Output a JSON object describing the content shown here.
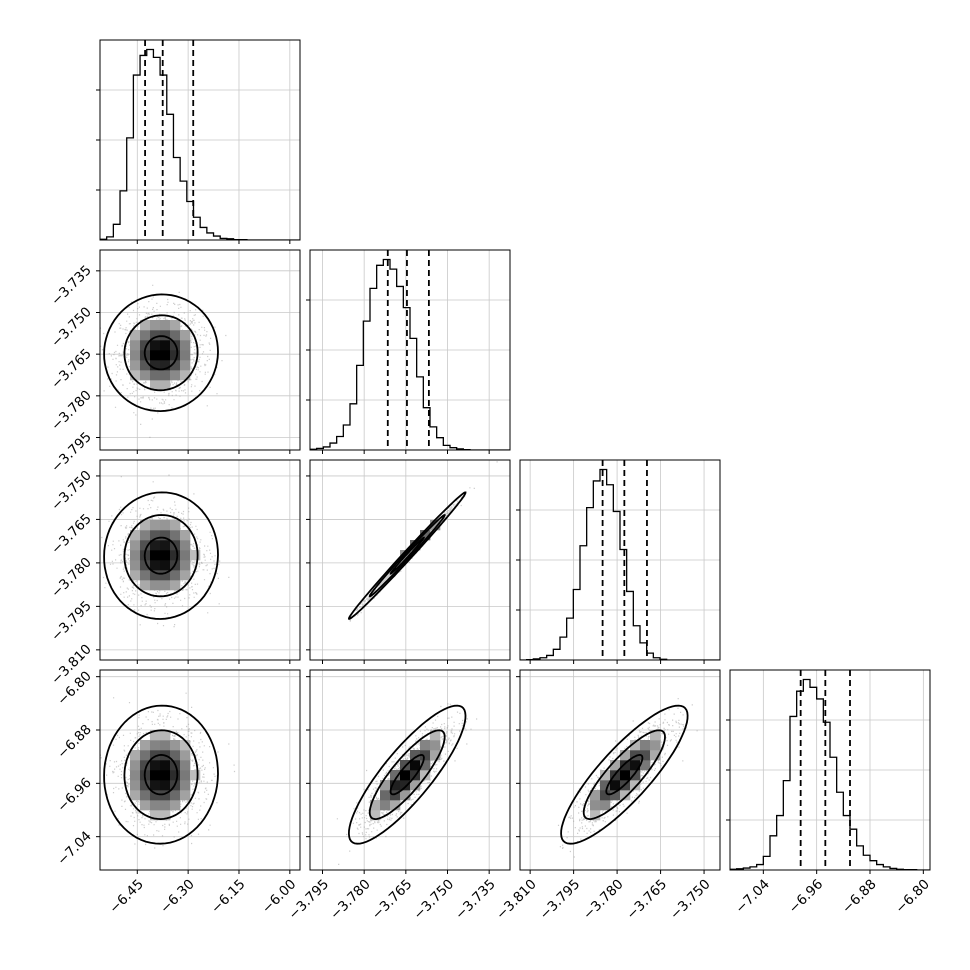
{
  "chart_data": {
    "type": "corner",
    "parameters": 4,
    "grid": true,
    "colors": {
      "line": "#000000",
      "grid": "#c8c8c8",
      "scatter": "#9a9a9a",
      "background": "#ffffff"
    },
    "axes": [
      {
        "min": -6.56,
        "max": -5.97,
        "ticks": [
          -6.45,
          -6.3,
          -6.15,
          -6.0
        ],
        "tick_labels": [
          "−6.45",
          "−6.30",
          "−6.15",
          "−6.00"
        ]
      },
      {
        "min": -3.7995,
        "max": -3.7275,
        "ticks": [
          -3.795,
          -3.78,
          -3.765,
          -3.75,
          -3.735
        ],
        "tick_labels": [
          "−3.795",
          "−3.780",
          "−3.765",
          "−3.750",
          "−3.735"
        ]
      },
      {
        "min": -3.8135,
        "max": -3.7445,
        "ticks": [
          -3.81,
          -3.795,
          -3.78,
          -3.765,
          -3.75
        ],
        "tick_labels": [
          "−3.810",
          "−3.795",
          "−3.780",
          "−3.765",
          "−3.750"
        ]
      },
      {
        "min": -7.09,
        "max": -6.79,
        "ticks": [
          -7.04,
          -6.96,
          -6.88,
          -6.8
        ],
        "tick_labels": [
          "−7.04",
          "−6.96",
          "−6.88",
          "−6.80"
        ]
      }
    ],
    "histograms": [
      {
        "bin_start": -6.56,
        "bin_width": 0.0197,
        "counts": [
          2,
          8,
          40,
          125,
          260,
          420,
          470,
          485,
          465,
          420,
          320,
          210,
          150,
          98,
          58,
          32,
          18,
          10,
          4,
          3,
          1,
          1,
          0,
          0,
          0,
          0,
          0,
          0,
          0,
          0
        ],
        "quantiles": [
          -6.427,
          -6.375,
          -6.285
        ]
      },
      {
        "bin_start": -3.7995,
        "bin_width": 0.0024,
        "counts": [
          2,
          4,
          8,
          18,
          35,
          65,
          120,
          220,
          335,
          420,
          480,
          495,
          470,
          425,
          370,
          290,
          190,
          110,
          60,
          32,
          12,
          6,
          3,
          1,
          0,
          0,
          0,
          0,
          0,
          0
        ],
        "quantiles": [
          -3.7715,
          -3.7646,
          -3.7567
        ]
      },
      {
        "bin_start": -3.8135,
        "bin_width": 0.0023,
        "counts": [
          0,
          1,
          3,
          6,
          12,
          28,
          60,
          110,
          185,
          300,
          400,
          470,
          500,
          460,
          390,
          290,
          180,
          90,
          45,
          18,
          6,
          2,
          0,
          0,
          0,
          0,
          0,
          0,
          0,
          0
        ],
        "quantiles": [
          -3.785,
          -3.7775,
          -3.7697
        ]
      },
      {
        "bin_start": -7.09,
        "bin_width": 0.01,
        "counts": [
          2,
          3,
          5,
          8,
          14,
          35,
          88,
          140,
          230,
          395,
          460,
          490,
          470,
          440,
          380,
          290,
          200,
          140,
          105,
          62,
          38,
          24,
          14,
          8,
          4,
          2,
          1,
          1,
          0,
          0
        ],
        "quantiles": [
          -6.984,
          -6.947,
          -6.91
        ]
      }
    ],
    "pairs": [
      {
        "row": 1,
        "col": 0,
        "center": [
          -6.38,
          -3.7645
        ],
        "sigma": [
          0.06,
          0.0075
        ],
        "rho": 0.02
      },
      {
        "row": 2,
        "col": 0,
        "center": [
          -6.38,
          -3.7775
        ],
        "sigma": [
          0.06,
          0.0078
        ],
        "rho": 0.02
      },
      {
        "row": 2,
        "col": 1,
        "center": [
          -3.7645,
          -3.7775
        ],
        "sigma": [
          0.0075,
          0.0078
        ],
        "rho": 0.995
      },
      {
        "row": 3,
        "col": 0,
        "center": [
          -6.38,
          -6.947
        ],
        "sigma": [
          0.06,
          0.037
        ],
        "rho": 0.02
      },
      {
        "row": 3,
        "col": 1,
        "center": [
          -3.7645,
          -6.947
        ],
        "sigma": [
          0.0075,
          0.037
        ],
        "rho": 0.85
      },
      {
        "row": 3,
        "col": 2,
        "center": [
          -3.7775,
          -6.947
        ],
        "sigma": [
          0.0078,
          0.037
        ],
        "rho": 0.85
      }
    ]
  }
}
